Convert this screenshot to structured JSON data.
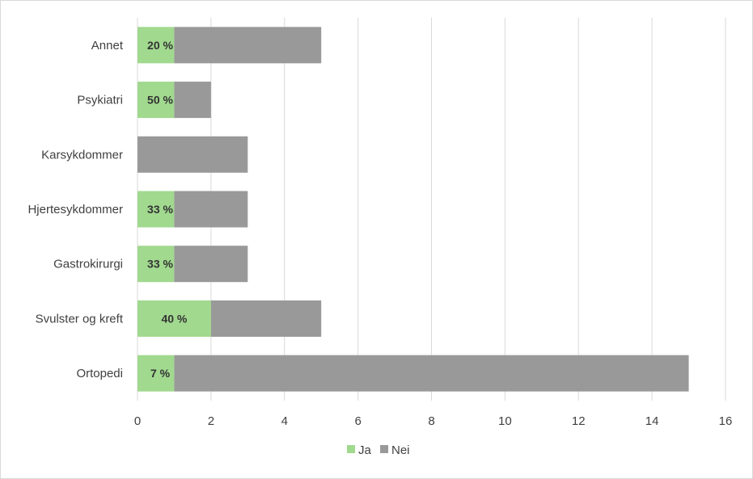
{
  "chart_data": {
    "type": "bar",
    "orientation": "horizontal",
    "stacked": true,
    "categories": [
      "Annet",
      "Psykiatri",
      "Karsykdommer",
      "Hjertesykdommer",
      "Gastrokirurgi",
      "Svulster og kreft",
      "Ortopedi"
    ],
    "series": [
      {
        "name": "Ja",
        "color": "#a1d98f",
        "values": [
          1,
          1,
          0,
          1,
          1,
          2,
          1
        ]
      },
      {
        "name": "Nei",
        "color": "#999999",
        "values": [
          4,
          1,
          3,
          2,
          2,
          3,
          14
        ]
      }
    ],
    "data_labels": [
      "20 %",
      "50 %",
      "",
      "33 %",
      "33 %",
      "40 %",
      "7 %"
    ],
    "xlim": [
      0,
      16
    ],
    "xticks": [
      0,
      2,
      4,
      6,
      8,
      10,
      12,
      14,
      16
    ],
    "grid": "vertical",
    "legend": "bottom-center",
    "title": "",
    "xlabel": "",
    "ylabel": ""
  }
}
